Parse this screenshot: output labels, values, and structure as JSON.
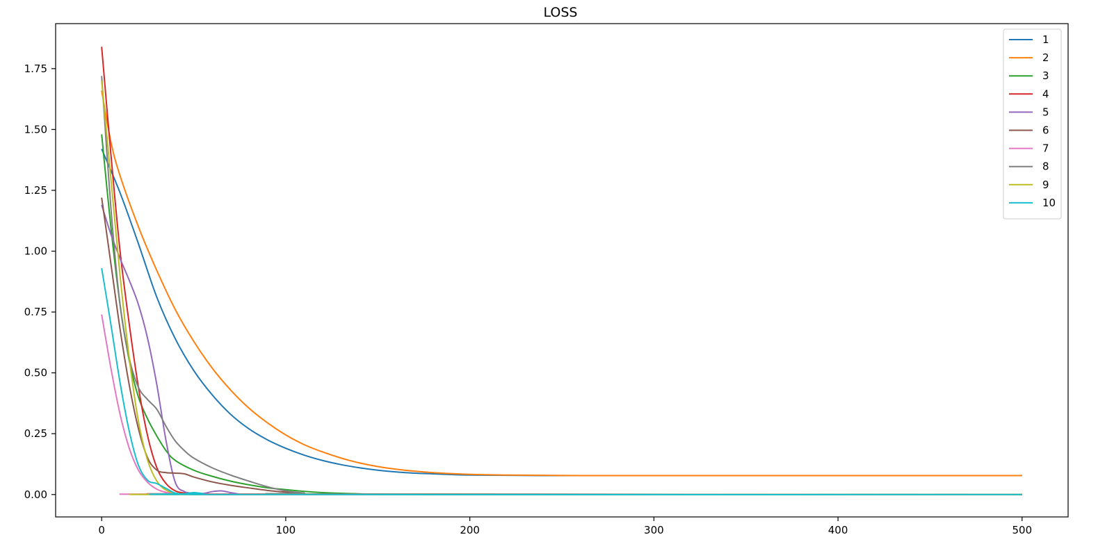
{
  "chart_data": {
    "type": "line",
    "title": "LOSS",
    "xlabel": "",
    "ylabel": "",
    "xlim": [
      -25,
      525
    ],
    "ylim": [
      -0.092,
      1.935
    ],
    "xticks": [
      0,
      100,
      200,
      300,
      400,
      500
    ],
    "xtick_labels": [
      "0",
      "100",
      "200",
      "300",
      "400",
      "500"
    ],
    "yticks": [
      0.0,
      0.25,
      0.5,
      0.75,
      1.0,
      1.25,
      1.5,
      1.75
    ],
    "ytick_labels": [
      "0.00",
      "0.25",
      "0.50",
      "0.75",
      "1.00",
      "1.25",
      "1.50",
      "1.75"
    ],
    "grid": false,
    "legend_position": "top-right",
    "series": [
      {
        "name": "1",
        "color": "#1f77b4",
        "x": [
          0,
          10,
          20,
          30,
          40,
          50,
          60,
          70,
          80,
          90,
          100,
          110,
          120,
          130,
          140,
          150,
          160,
          170,
          180,
          190,
          200,
          220,
          240,
          260,
          300,
          400,
          500
        ],
        "y": [
          1.42,
          1.24,
          1.03,
          0.81,
          0.64,
          0.51,
          0.41,
          0.33,
          0.27,
          0.225,
          0.19,
          0.162,
          0.14,
          0.123,
          0.11,
          0.1,
          0.093,
          0.088,
          0.085,
          0.082,
          0.08,
          0.079,
          0.078,
          0.078,
          0.078,
          0.078,
          0.078
        ]
      },
      {
        "name": "2",
        "color": "#ff7f0e",
        "x": [
          0,
          5,
          10,
          20,
          30,
          40,
          50,
          60,
          70,
          80,
          90,
          100,
          110,
          120,
          130,
          140,
          150,
          160,
          170,
          180,
          190,
          200,
          220,
          240,
          260,
          300,
          400,
          500
        ],
        "y": [
          1.66,
          1.45,
          1.31,
          1.1,
          0.92,
          0.76,
          0.63,
          0.52,
          0.43,
          0.355,
          0.295,
          0.245,
          0.205,
          0.175,
          0.15,
          0.13,
          0.115,
          0.104,
          0.096,
          0.09,
          0.086,
          0.083,
          0.08,
          0.079,
          0.078,
          0.078,
          0.078,
          0.078
        ]
      },
      {
        "name": "3",
        "color": "#2ca02c",
        "x": [
          0,
          5,
          10,
          15,
          20,
          25,
          30,
          35,
          40,
          50,
          60,
          70,
          80,
          90,
          100,
          110,
          120,
          130,
          140,
          150,
          200,
          500
        ],
        "y": [
          1.48,
          1.1,
          0.78,
          0.55,
          0.4,
          0.31,
          0.24,
          0.18,
          0.14,
          0.1,
          0.075,
          0.055,
          0.04,
          0.028,
          0.02,
          0.013,
          0.008,
          0.005,
          0.003,
          0.001,
          0.0,
          0.0
        ]
      },
      {
        "name": "4",
        "color": "#d62728",
        "x": [
          0,
          5,
          10,
          15,
          20,
          25,
          30,
          35,
          40,
          45,
          50,
          60,
          500
        ],
        "y": [
          1.84,
          1.4,
          1.0,
          0.7,
          0.44,
          0.24,
          0.11,
          0.045,
          0.015,
          0.006,
          0.004,
          0.002,
          0.0
        ]
      },
      {
        "name": "5",
        "color": "#9467bd",
        "x": [
          0,
          5,
          10,
          15,
          20,
          25,
          30,
          35,
          40,
          45,
          50,
          55,
          60,
          65,
          70,
          75,
          80,
          500
        ],
        "y": [
          1.19,
          1.07,
          0.97,
          0.88,
          0.78,
          0.64,
          0.45,
          0.22,
          0.05,
          0.012,
          0.006,
          0.004,
          0.012,
          0.015,
          0.008,
          0.002,
          0.0,
          0.0
        ]
      },
      {
        "name": "6",
        "color": "#8c564b",
        "x": [
          0,
          5,
          10,
          15,
          20,
          25,
          30,
          35,
          40,
          45,
          50,
          60,
          70,
          80,
          90,
          100,
          110,
          120,
          500
        ],
        "y": [
          1.22,
          0.95,
          0.68,
          0.45,
          0.27,
          0.15,
          0.1,
          0.09,
          0.088,
          0.085,
          0.072,
          0.052,
          0.038,
          0.027,
          0.017,
          0.01,
          0.005,
          0.002,
          0.0
        ]
      },
      {
        "name": "7",
        "color": "#e377c2",
        "x": [
          0,
          5,
          10,
          15,
          20,
          25,
          30,
          35,
          40,
          45,
          500
        ],
        "y": [
          0.74,
          0.52,
          0.33,
          0.19,
          0.1,
          0.05,
          0.022,
          0.009,
          0.003,
          0.001,
          0.0
        ]
      },
      {
        "name": "8",
        "color": "#7f7f7f",
        "x": [
          0,
          5,
          10,
          15,
          20,
          25,
          30,
          35,
          40,
          45,
          50,
          60,
          70,
          80,
          90,
          100,
          110,
          120,
          500
        ],
        "y": [
          1.72,
          1.18,
          0.78,
          0.56,
          0.44,
          0.39,
          0.35,
          0.28,
          0.22,
          0.18,
          0.15,
          0.11,
          0.08,
          0.055,
          0.032,
          0.015,
          0.006,
          0.002,
          0.0
        ]
      },
      {
        "name": "9",
        "color": "#bcbd22",
        "x": [
          0,
          5,
          10,
          15,
          20,
          25,
          30,
          35,
          40,
          45,
          50,
          500
        ],
        "y": [
          1.7,
          1.3,
          0.9,
          0.56,
          0.3,
          0.14,
          0.055,
          0.018,
          0.006,
          0.002,
          0.0,
          0.0
        ]
      },
      {
        "name": "10",
        "color": "#17becf",
        "x": [
          0,
          5,
          10,
          15,
          20,
          25,
          30,
          35,
          40,
          45,
          50,
          55,
          60,
          500
        ],
        "y": [
          0.93,
          0.7,
          0.46,
          0.26,
          0.12,
          0.058,
          0.045,
          0.025,
          0.006,
          0.003,
          0.008,
          0.004,
          0.0,
          0.0
        ]
      }
    ]
  }
}
